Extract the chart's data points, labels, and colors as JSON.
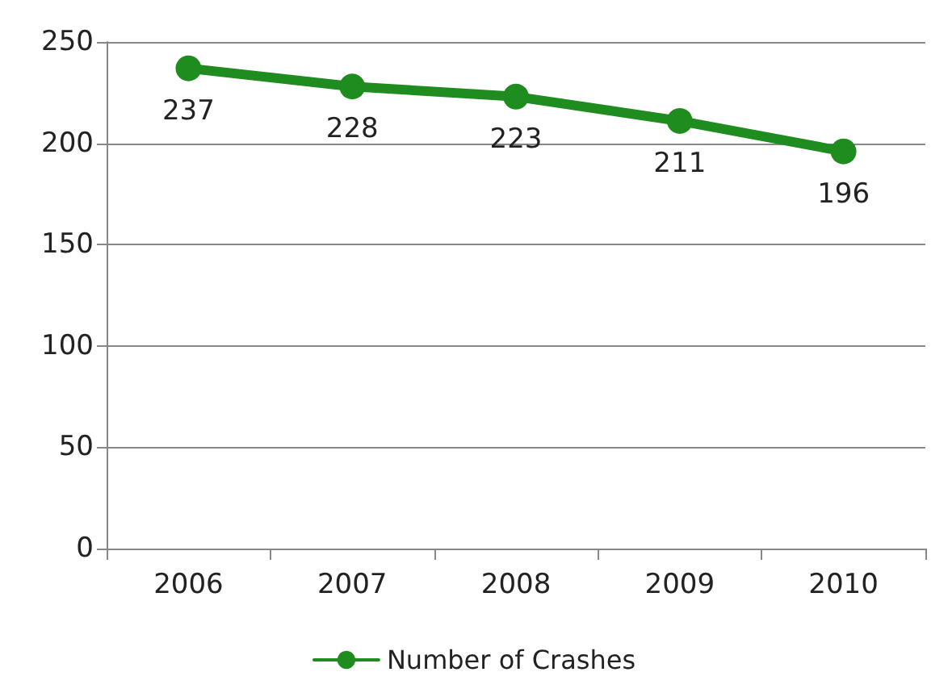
{
  "chart_data": {
    "type": "line",
    "categories": [
      "2006",
      "2007",
      "2008",
      "2009",
      "2010"
    ],
    "series": [
      {
        "name": "Number of Crashes",
        "color": "#1e8c1e",
        "values": [
          237,
          228,
          223,
          211,
          196
        ]
      }
    ],
    "ylim": [
      0,
      250
    ],
    "yticks": [
      0,
      50,
      100,
      150,
      200,
      250
    ],
    "grid": "y",
    "legend": "bottom",
    "marker": "circle",
    "data_labels": true
  }
}
